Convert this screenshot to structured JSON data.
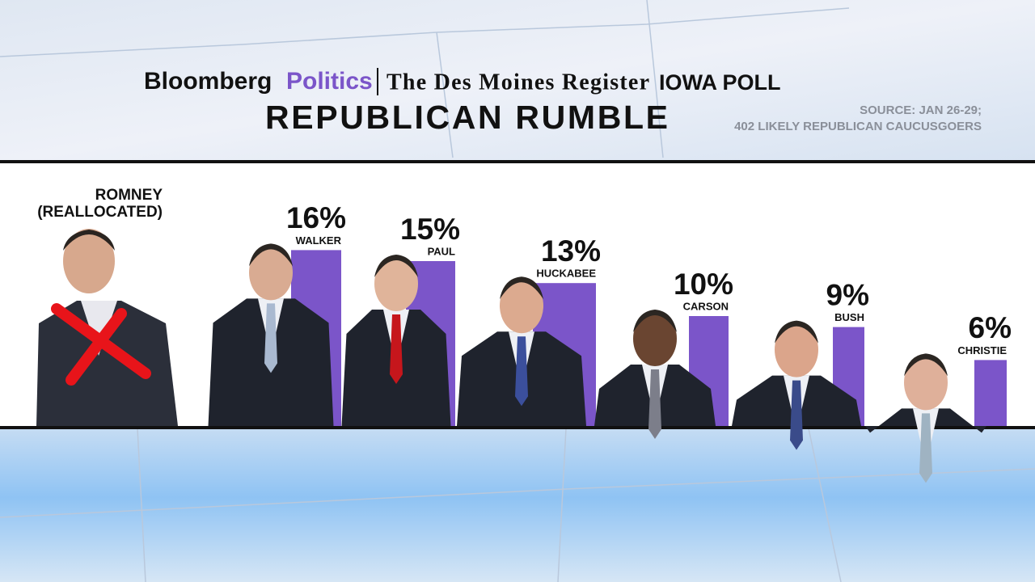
{
  "chart_data": {
    "type": "bar",
    "title": "REPUBLICAN RUMBLE",
    "header": [
      "Bloomberg",
      "Politics",
      "The Des Moines Register",
      "IOWA POLL"
    ],
    "source": [
      "SOURCE: JAN 26-29;",
      "402 LIKELY REPUBLICAN CAUCUSGOERS"
    ],
    "annotation": [
      "ROMNEY",
      "(REALLOCATED)"
    ],
    "categories": [
      "WALKER",
      "PAUL",
      "HUCKABEE",
      "CARSON",
      "BUSH",
      "CHRISTIE"
    ],
    "values": [
      16,
      15,
      13,
      10,
      9,
      6
    ],
    "value_labels": [
      "16%",
      "15%",
      "13%",
      "10%",
      "9%",
      "6%"
    ],
    "color": "#7b55c9"
  }
}
